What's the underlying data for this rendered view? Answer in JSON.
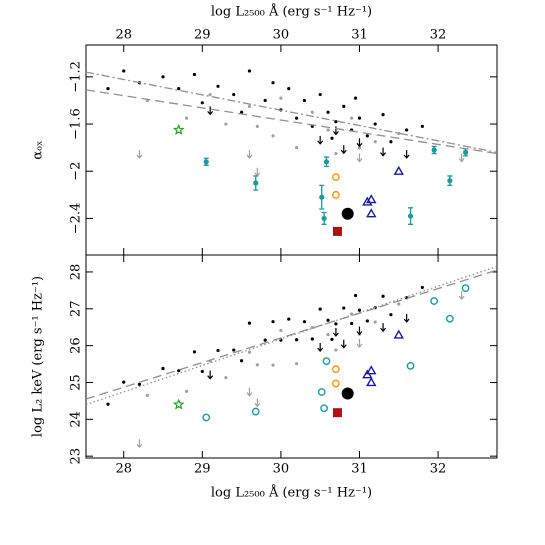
{
  "chart_data": [
    {
      "type": "scatter",
      "x_label": "log L₂₅₀₀ Å (erg s⁻¹ Hz⁻¹)",
      "x_label_side": "top",
      "y_label": "αₒₓ",
      "xlim": [
        27.52,
        32.75
      ],
      "xticks": [
        28,
        29,
        30,
        31,
        32
      ],
      "ylim": [
        -2.71,
        -0.93
      ],
      "yticks": [
        {
          "value": -1.2,
          "label": "−1.2"
        },
        {
          "value": -1.6,
          "label": "−1.6"
        },
        {
          "value": -2,
          "label": "−2"
        },
        {
          "value": -2.4,
          "label": "−2.4"
        }
      ],
      "series": [
        {
          "marker": "dot",
          "color": "#000000",
          "x": [
            27.8,
            28.0,
            28.2,
            28.5,
            28.7,
            28.9,
            29.0,
            29.2,
            29.4,
            29.6,
            29.8,
            29.9,
            30.0,
            30.1,
            30.2,
            30.3,
            30.4,
            30.5,
            30.6,
            30.7,
            30.8,
            30.9,
            31.0,
            31.1,
            31.2,
            31.3,
            31.4,
            31.6,
            31.8,
            30.95,
            30.65,
            29.5
          ],
          "values": [
            -1.3,
            -1.15,
            -1.25,
            -1.2,
            -1.3,
            -1.18,
            -1.42,
            -1.28,
            -1.35,
            -1.15,
            -1.4,
            -1.25,
            -1.48,
            -1.3,
            -1.55,
            -1.4,
            -1.62,
            -1.35,
            -1.5,
            -1.58,
            -1.45,
            -1.65,
            -1.55,
            -1.7,
            -1.6,
            -1.52,
            -1.75,
            -1.65,
            -1.62,
            -1.38,
            -1.72,
            -1.5
          ]
        },
        {
          "marker": "dot",
          "color": "#a0a0a0",
          "x": [
            28.3,
            28.8,
            29.1,
            29.3,
            29.6,
            29.9,
            30.0,
            30.2,
            30.4,
            30.6,
            30.9,
            31.2,
            31.5,
            29.7,
            30.7,
            31.0
          ],
          "values": [
            -1.4,
            -1.55,
            -1.35,
            -1.6,
            -1.45,
            -1.7,
            -1.38,
            -1.8,
            -1.5,
            -1.65,
            -1.55,
            -1.75,
            -1.68,
            -1.62,
            -1.85,
            -1.8
          ]
        },
        {
          "marker": "arrow",
          "color": "#000000",
          "x": [
            30.5,
            30.8,
            31.0,
            31.3,
            29.1,
            31.6,
            30.7
          ],
          "values": [
            -1.7,
            -1.78,
            -1.72,
            -1.8,
            -1.45,
            -1.82,
            -1.62
          ]
        },
        {
          "marker": "arrow",
          "color": "#a0a0a0",
          "x": [
            28.2,
            29.6,
            29.7,
            31.0,
            32.3
          ],
          "values": [
            -1.82,
            -1.82,
            -1.97,
            -1.85,
            -1.85
          ]
        },
        {
          "marker": "errdot",
          "color": "#1a9a9a",
          "x": [
            29.05,
            29.68,
            30.52,
            30.55,
            30.58,
            31.65,
            31.95,
            32.15,
            32.35
          ],
          "values": [
            -1.92,
            -2.1,
            -2.22,
            -2.4,
            -1.92,
            -2.38,
            -1.82,
            -2.08,
            -1.84
          ],
          "errors": [
            0.03,
            0.06,
            0.1,
            0.05,
            0.04,
            0.07,
            0.03,
            0.04,
            0.03
          ]
        },
        {
          "marker": "ocircle",
          "color": "#f5960a",
          "x": [
            30.7,
            30.7
          ],
          "values": [
            -2.05,
            -2.2
          ]
        },
        {
          "marker": "triangle",
          "color": "#1a1aa0",
          "x": [
            31.1,
            31.15,
            31.15,
            31.5
          ],
          "values": [
            -2.26,
            -2.24,
            -2.36,
            -2.0
          ]
        },
        {
          "marker": "bigdot",
          "color": "#000000",
          "x": [
            30.85
          ],
          "values": [
            -2.36
          ]
        },
        {
          "marker": "square",
          "color": "#b01010",
          "x": [
            30.72
          ],
          "values": [
            -2.51
          ]
        },
        {
          "marker": "star",
          "color": "#20a020",
          "x": [
            28.7
          ],
          "values": [
            -1.65
          ]
        },
        {
          "marker": "line",
          "color": "#909090",
          "dash": "8 3 2 3",
          "x": [
            27.52,
            32.75
          ],
          "values": [
            -1.16,
            -1.84
          ]
        },
        {
          "marker": "line",
          "color": "#909090",
          "dash": "9 5",
          "x": [
            27.52,
            32.75
          ],
          "values": [
            -1.31,
            -1.85
          ]
        }
      ]
    },
    {
      "type": "scatter",
      "x_label": "log L₂₅₀₀ Å (erg s⁻¹ Hz⁻¹)",
      "x_label_side": "bottom",
      "y_label": "log L₂ keV (erg s⁻¹ Hz⁻¹)",
      "xlim": [
        27.52,
        32.75
      ],
      "xticks": [
        28,
        29,
        30,
        31,
        32
      ],
      "ylim": [
        22.95,
        28.46
      ],
      "yticks": [
        23,
        24,
        25,
        26,
        27,
        28
      ],
      "series": [
        {
          "marker": "dot",
          "color": "#000000",
          "x": [
            27.8,
            28.0,
            28.2,
            28.5,
            28.7,
            28.9,
            29.0,
            29.2,
            29.4,
            29.6,
            29.8,
            29.9,
            30.0,
            30.1,
            30.2,
            30.3,
            30.4,
            30.5,
            30.6,
            30.7,
            30.8,
            30.9,
            31.0,
            31.1,
            31.2,
            31.3,
            31.4,
            31.6,
            31.8,
            30.95,
            30.65,
            29.5
          ],
          "values": [
            24.41,
            25.01,
            24.95,
            25.38,
            25.32,
            25.83,
            25.3,
            25.87,
            25.88,
            26.61,
            26.15,
            26.65,
            26.15,
            26.72,
            26.16,
            26.65,
            26.18,
            26.99,
            26.69,
            26.59,
            27.02,
            26.6,
            26.96,
            26.67,
            27.03,
            27.34,
            26.84,
            27.3,
            27.58,
            27.36,
            26.17,
            25.59
          ]
        },
        {
          "marker": "dot",
          "color": "#a0a0a0",
          "x": [
            28.3,
            28.8,
            29.1,
            29.3,
            29.6,
            29.9,
            30.0,
            30.2,
            30.4,
            30.6,
            30.9,
            31.2,
            31.5,
            29.7,
            30.7,
            31.0
          ],
          "values": [
            24.65,
            24.76,
            25.58,
            25.13,
            25.82,
            25.47,
            26.41,
            25.51,
            26.49,
            26.3,
            26.86,
            26.64,
            27.13,
            25.48,
            25.88,
            26.31
          ]
        },
        {
          "marker": "arrow",
          "color": "#000000",
          "x": [
            30.5,
            30.8,
            31.0,
            31.3,
            29.1,
            31.6,
            30.7
          ],
          "values": [
            26.07,
            26.16,
            26.52,
            26.61,
            25.32,
            26.86,
            26.48
          ]
        },
        {
          "marker": "arrow",
          "color": "#a0a0a0",
          "x": [
            28.2,
            29.6,
            29.7,
            31.0,
            32.3
          ],
          "values": [
            23.46,
            24.86,
            24.57,
            26.18,
            27.48
          ]
        },
        {
          "marker": "ocircle",
          "color": "#1a9a9a",
          "x": [
            29.05,
            29.68,
            30.52,
            30.55,
            30.58,
            31.65,
            31.95,
            32.15,
            32.35
          ],
          "values": [
            24.05,
            24.21,
            24.74,
            24.3,
            25.58,
            25.45,
            27.21,
            26.73,
            27.56
          ]
        },
        {
          "marker": "ocircle",
          "color": "#f5960a",
          "x": [
            30.7,
            30.7
          ],
          "values": [
            25.36,
            24.97
          ]
        },
        {
          "marker": "triangle",
          "color": "#1a1aa0",
          "x": [
            31.1,
            31.15,
            31.15,
            31.5
          ],
          "values": [
            25.21,
            25.32,
            25.0,
            26.29
          ]
        },
        {
          "marker": "bigdot",
          "color": "#000000",
          "x": [
            30.85
          ],
          "values": [
            24.7
          ]
        },
        {
          "marker": "square",
          "color": "#b01010",
          "x": [
            30.72
          ],
          "values": [
            24.18
          ]
        },
        {
          "marker": "star",
          "color": "#20a020",
          "x": [
            28.7
          ],
          "values": [
            24.4
          ]
        },
        {
          "marker": "line",
          "color": "#909090",
          "dash": "9 5",
          "x": [
            27.52,
            32.75
          ],
          "values": [
            24.55,
            28.05
          ]
        },
        {
          "marker": "line",
          "color": "#909090",
          "dash": "1.5 2.5",
          "x": [
            27.52,
            32.75
          ],
          "values": [
            24.4,
            28.15
          ]
        }
      ]
    }
  ]
}
